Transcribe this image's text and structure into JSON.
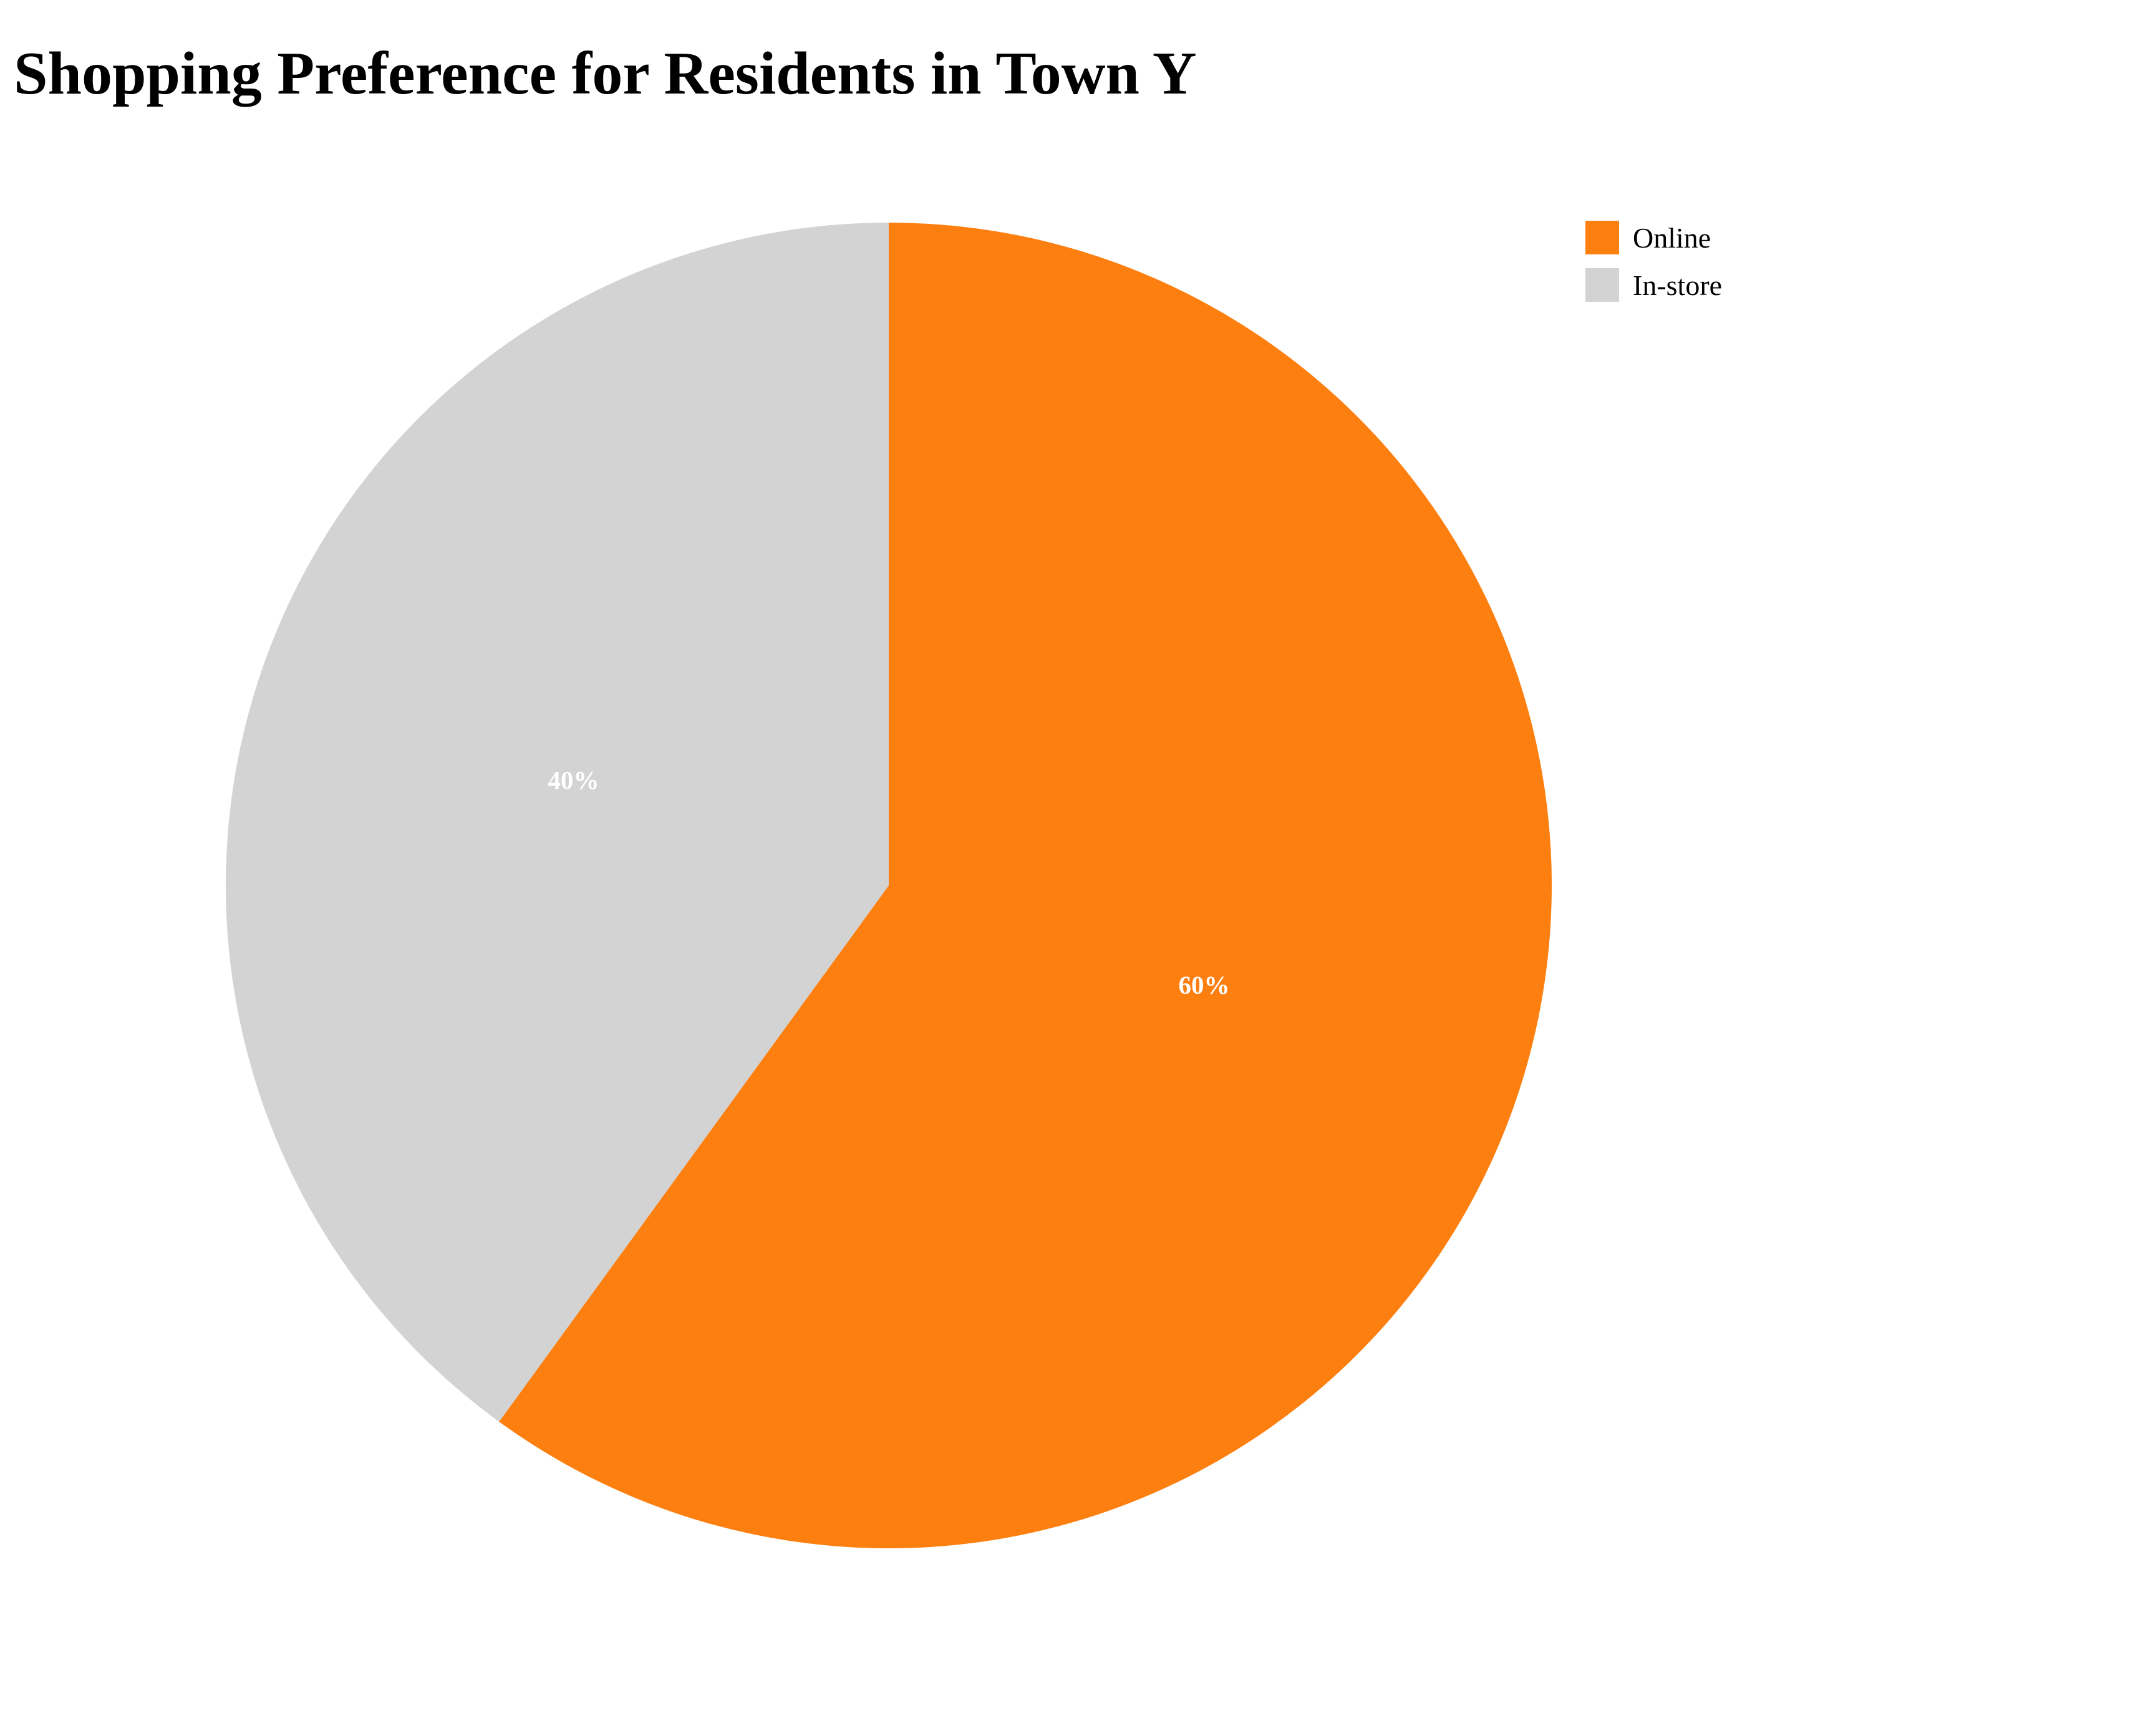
{
  "chart_data": {
    "type": "pie",
    "title": "Shopping Preference for Residents in Town Y",
    "categories": [
      "Online",
      "In-store"
    ],
    "values": [
      60,
      40
    ],
    "data_labels": [
      "60%",
      "40%"
    ],
    "colors": [
      "#fd7f0f",
      "#d3d3d3"
    ],
    "legend_position": "top-right"
  }
}
